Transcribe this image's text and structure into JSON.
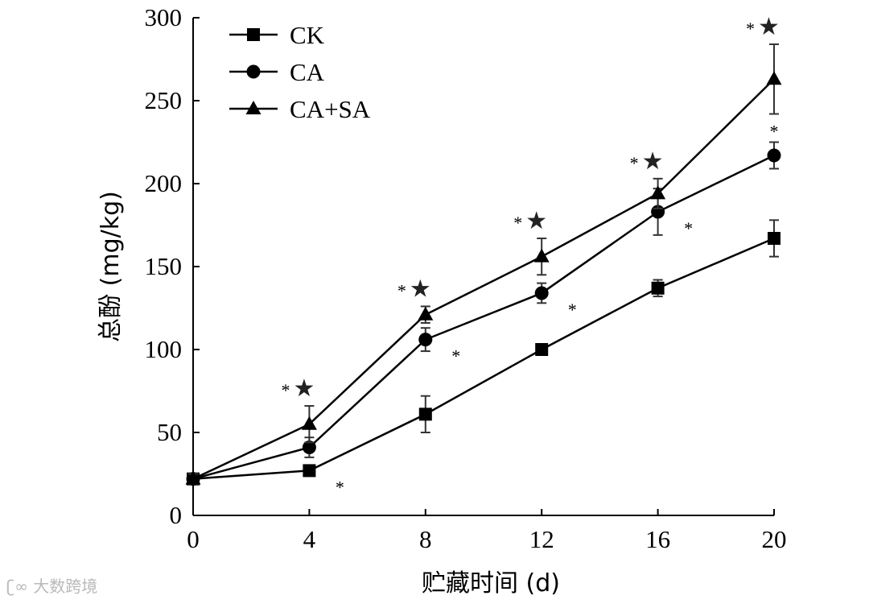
{
  "chart_data": {
    "type": "line",
    "title": "",
    "xlabel": "贮藏时间 (d)",
    "ylabel": "总酚 (mg/kg)",
    "x": [
      0,
      4,
      8,
      12,
      16,
      20
    ],
    "xticks": [
      "0",
      "4",
      "8",
      "12",
      "16",
      "20"
    ],
    "ylim": [
      0,
      300
    ],
    "yticks": [
      "0",
      "50",
      "100",
      "150",
      "200",
      "250",
      "300"
    ],
    "grid": false,
    "legend": "top-left",
    "series": [
      {
        "name": "CK",
        "marker": "square",
        "values": [
          22,
          27,
          61,
          100,
          137,
          167
        ],
        "errors": [
          3,
          3,
          11,
          2,
          5,
          11
        ],
        "annotations": [
          {
            "x": 4,
            "text": "*"
          }
        ]
      },
      {
        "name": "CA",
        "marker": "circle",
        "values": [
          22,
          41,
          106,
          134,
          183,
          217
        ],
        "errors": [
          3,
          6,
          7,
          6,
          14,
          8
        ],
        "annotations": [
          {
            "x": 8,
            "text": "*"
          },
          {
            "x": 12,
            "text": "*"
          },
          {
            "x": 16,
            "text": "*"
          },
          {
            "x": 20,
            "text": "*"
          }
        ]
      },
      {
        "name": "CA+SA",
        "marker": "triangle",
        "values": [
          22,
          55,
          121,
          156,
          194,
          263
        ],
        "errors": [
          3,
          11,
          5,
          11,
          9,
          21
        ],
        "annotations": [
          {
            "x": 4,
            "text": "*★"
          },
          {
            "x": 8,
            "text": "*★"
          },
          {
            "x": 12,
            "text": "*★"
          },
          {
            "x": 16,
            "text": "*★"
          },
          {
            "x": 20,
            "text": "*★"
          }
        ]
      }
    ]
  },
  "watermark": "大数跨境"
}
